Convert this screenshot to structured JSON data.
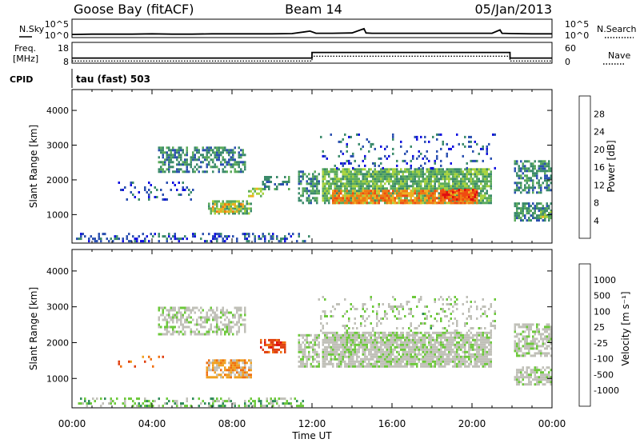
{
  "header": {
    "station": "Goose Bay (fitACF)",
    "beam": "Beam 14",
    "date": "05/Jan/2013"
  },
  "panel_labels": {
    "nsky": "N.Sky",
    "nsearch": "N.Search",
    "freq": "Freq.",
    "freq_unit": "[MHz]",
    "nave": "Nave",
    "cpid_label": "CPID",
    "cpid_value": "tau (fast) 503"
  },
  "colors": {
    "power_scale": [
      "#1010e0",
      "#2a4fb0",
      "#3a8a6a",
      "#5aaa5a",
      "#a6d23a",
      "#f0b020",
      "#f07a10",
      "#f04a10",
      "#e01010"
    ],
    "velocity_scale": [
      "#1a2ab0",
      "#2a60c0",
      "#2e8a58",
      "#6cc83a",
      "#c0c0b8",
      "#c0c0b8",
      "#f0a020",
      "#f07010",
      "#e04010",
      "#e01010"
    ]
  },
  "chart_data": [
    {
      "type": "line",
      "name": "noise-panel",
      "xlabel": "",
      "ylabel_left": "N.Sky",
      "ylabel_right": "N.Search",
      "left_tick_labels": [
        "10^5",
        "10^0"
      ],
      "right_tick_labels": [
        "10^5",
        "10^0"
      ],
      "x_hours": [
        0,
        1,
        2,
        3,
        4,
        5,
        6,
        7,
        8,
        9,
        10,
        11,
        11.9,
        12.2,
        13,
        14,
        14.6,
        14.7,
        15,
        16,
        17,
        18,
        19,
        20,
        21,
        21.4,
        21.5,
        22,
        23,
        24
      ],
      "nsky_log": [
        0.5,
        0.6,
        0.6,
        0.6,
        0.7,
        0.6,
        0.6,
        0.7,
        0.7,
        0.7,
        0.7,
        0.8,
        1.6,
        0.9,
        0.9,
        1.0,
        2.4,
        1.0,
        0.9,
        0.9,
        0.9,
        0.9,
        0.9,
        0.9,
        0.9,
        2.0,
        0.9,
        0.8,
        0.7,
        0.7
      ]
    },
    {
      "type": "line",
      "name": "frequency-panel",
      "ylabel_left": "Freq. [MHz]",
      "ylabel_right": "Nave",
      "left_tick_labels": [
        "18",
        "8"
      ],
      "right_tick_labels": [
        "60",
        "0"
      ],
      "segments_freq": [
        {
          "start_h": 0,
          "end_h": 12.0,
          "mhz": 10.2
        },
        {
          "start_h": 12.0,
          "end_h": 21.9,
          "mhz": 13.7
        },
        {
          "start_h": 21.9,
          "end_h": 24,
          "mhz": 10.2
        }
      ],
      "segments_nave": [
        {
          "start_h": 0,
          "end_h": 12.0,
          "nave": 2
        },
        {
          "start_h": 12.0,
          "end_h": 21.9,
          "nave": 20
        },
        {
          "start_h": 21.9,
          "end_h": 24,
          "nave": 2
        }
      ]
    },
    {
      "type": "heatmap",
      "name": "power-panel",
      "xlim_hours": [
        0,
        24
      ],
      "ylim": [
        180,
        4600
      ],
      "ylabel": "Slant Range [km]",
      "y_ticks": [
        1000,
        2000,
        3000,
        4000
      ],
      "y_tick_labels": [
        "1000",
        "2000",
        "3000",
        "4000"
      ],
      "colorbar_label": "Power [dB]",
      "colorbar_ticks": [
        "4",
        "8",
        "12",
        "16",
        "20",
        "24",
        "28"
      ],
      "regions": [
        {
          "t0": 0.2,
          "t1": 11.8,
          "r0": 200,
          "r1": 420,
          "level": 1,
          "density": 0.35
        },
        {
          "t0": 4.3,
          "t1": 8.6,
          "r0": 2200,
          "r1": 2950,
          "level": 2,
          "density": 0.55
        },
        {
          "t0": 6.8,
          "t1": 8.9,
          "r0": 1000,
          "r1": 1400,
          "level": 3,
          "density": 0.7
        },
        {
          "t0": 7.0,
          "t1": 8.5,
          "r0": 1050,
          "r1": 1300,
          "level": 5,
          "density": 0.5
        },
        {
          "t0": 8.8,
          "t1": 9.5,
          "r0": 1500,
          "r1": 1750,
          "level": 4,
          "density": 0.6
        },
        {
          "t0": 9.5,
          "t1": 10.8,
          "r0": 1700,
          "r1": 2100,
          "level": 2,
          "density": 0.5
        },
        {
          "t0": 2.3,
          "t1": 6.0,
          "r0": 1400,
          "r1": 1900,
          "level": 1,
          "density": 0.15
        },
        {
          "t0": 11.3,
          "t1": 12.3,
          "r0": 1300,
          "r1": 2200,
          "level": 2,
          "density": 0.6
        },
        {
          "t0": 12.5,
          "t1": 21.0,
          "r0": 1300,
          "r1": 2300,
          "level": 3,
          "density": 0.85
        },
        {
          "t0": 13.0,
          "t1": 20.3,
          "r0": 1300,
          "r1": 1650,
          "level": 6,
          "density": 0.7
        },
        {
          "t0": 18.5,
          "t1": 20.3,
          "r0": 1400,
          "r1": 1700,
          "level": 7,
          "density": 0.6
        },
        {
          "t0": 12.3,
          "t1": 21.2,
          "r0": 2300,
          "r1": 3300,
          "level": 1,
          "density": 0.12
        },
        {
          "t0": 22.1,
          "t1": 24,
          "r0": 800,
          "r1": 1300,
          "level": 2,
          "density": 0.7
        },
        {
          "t0": 22.1,
          "t1": 24,
          "r0": 1600,
          "r1": 2500,
          "level": 2,
          "density": 0.6
        },
        {
          "t0": 23.2,
          "t1": 24,
          "r0": 900,
          "r1": 1100,
          "level": 4,
          "density": 0.5
        }
      ]
    },
    {
      "type": "heatmap",
      "name": "velocity-panel",
      "xlim_hours": [
        0,
        24
      ],
      "ylim": [
        180,
        4600
      ],
      "ylabel": "Slant Range [km]",
      "xlabel": "Time UT",
      "y_ticks": [
        1000,
        2000,
        3000,
        4000
      ],
      "y_tick_labels": [
        "1000",
        "2000",
        "3000",
        "4000"
      ],
      "x_ticks_hours": [
        0,
        4,
        8,
        12,
        16,
        20,
        24
      ],
      "x_tick_labels": [
        "00:00",
        "04:00",
        "08:00",
        "12:00",
        "16:00",
        "20:00",
        "00:00"
      ],
      "colorbar_label": "Velocity [m s⁻¹]",
      "colorbar_ticks": [
        "1000",
        "500",
        "100",
        "25",
        "-25",
        "-100",
        "-500",
        "-1000"
      ],
      "regions": [
        {
          "t0": 0.2,
          "t1": 11.8,
          "r0": 200,
          "r1": 420,
          "level": 3,
          "density": 0.35
        },
        {
          "t0": 4.3,
          "t1": 8.6,
          "r0": 2200,
          "r1": 2950,
          "level": 4,
          "density": 0.55
        },
        {
          "t0": 6.7,
          "t1": 8.9,
          "r0": 1000,
          "r1": 1500,
          "level": 6,
          "density": 0.75
        },
        {
          "t0": 2.3,
          "t1": 5.0,
          "r0": 1300,
          "r1": 1600,
          "level": 7,
          "density": 0.15
        },
        {
          "t0": 9.4,
          "t1": 10.6,
          "r0": 1700,
          "r1": 2100,
          "level": 8,
          "density": 0.55
        },
        {
          "t0": 11.3,
          "t1": 12.3,
          "r0": 1300,
          "r1": 2200,
          "level": 4,
          "density": 0.6
        },
        {
          "t0": 12.5,
          "t1": 21.0,
          "r0": 1300,
          "r1": 2300,
          "level": 4,
          "density": 0.85
        },
        {
          "t0": 12.3,
          "t1": 21.2,
          "r0": 2300,
          "r1": 3300,
          "level": 4,
          "density": 0.15
        },
        {
          "t0": 16.0,
          "t1": 21.0,
          "r0": 2300,
          "r1": 3000,
          "level": 3,
          "density": 0.05
        },
        {
          "t0": 22.1,
          "t1": 24,
          "r0": 800,
          "r1": 1300,
          "level": 4,
          "density": 0.7
        },
        {
          "t0": 22.1,
          "t1": 24,
          "r0": 1600,
          "r1": 2500,
          "level": 4,
          "density": 0.6
        }
      ]
    }
  ]
}
